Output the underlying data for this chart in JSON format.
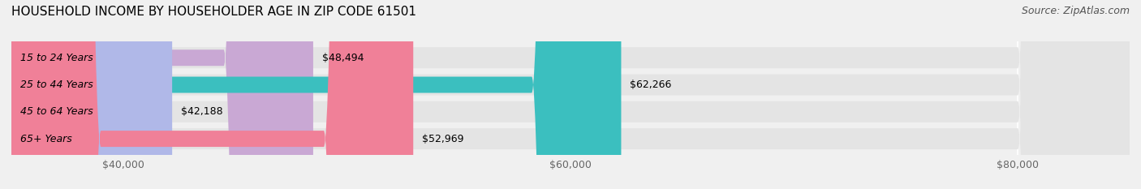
{
  "title": "HOUSEHOLD INCOME BY HOUSEHOLDER AGE IN ZIP CODE 61501",
  "source": "Source: ZipAtlas.com",
  "categories": [
    "15 to 24 Years",
    "25 to 44 Years",
    "45 to 64 Years",
    "65+ Years"
  ],
  "values": [
    48494,
    62266,
    42188,
    52969
  ],
  "bar_colors": [
    "#c9a8d4",
    "#3bbfbf",
    "#b0b8e8",
    "#f08098"
  ],
  "bar_labels": [
    "$48,494",
    "$62,266",
    "$42,188",
    "$52,969"
  ],
  "xmin": 35000,
  "xmax": 85000,
  "xticks": [
    40000,
    60000,
    80000
  ],
  "xticklabels": [
    "$40,000",
    "$60,000",
    "$80,000"
  ],
  "background_color": "#f0f0f0",
  "bar_bg_color": "#e4e4e4",
  "title_fontsize": 11,
  "source_fontsize": 9,
  "label_fontsize": 9,
  "tick_fontsize": 9
}
